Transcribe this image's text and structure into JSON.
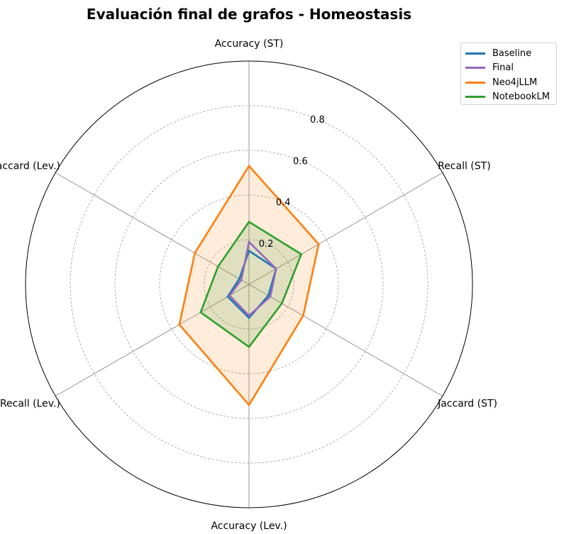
{
  "chart_data": {
    "type": "radar",
    "title": "Evaluación final de grafos - Homeostasis",
    "axes": [
      "Accuracy (ST)",
      "Recall (ST)",
      "Jaccard (ST)",
      "Accuracy (Lev.)",
      "Recall (Lev.)",
      "Jaccard (Lev.)"
    ],
    "rlim": [
      0,
      1.0
    ],
    "r_ticks": [
      0.2,
      0.4,
      0.6,
      0.8
    ],
    "r_tick_labels": [
      "0.2",
      "0.4",
      "0.6",
      "0.8"
    ],
    "grid": true,
    "legend_position": "top-right",
    "series": [
      {
        "name": "Baseline",
        "color": "#1f77b4",
        "values": [
          0.15,
          0.14,
          0.1,
          0.15,
          0.11,
          0.05
        ],
        "fill": false
      },
      {
        "name": "Final",
        "color": "#9467bd",
        "values": [
          0.19,
          0.14,
          0.11,
          0.14,
          0.1,
          0.04
        ],
        "fill": false
      },
      {
        "name": "Neo4jLLM",
        "color": "#ff7f0e",
        "values": [
          0.53,
          0.36,
          0.28,
          0.54,
          0.36,
          0.28
        ],
        "fill": true
      },
      {
        "name": "NotebookLM",
        "color": "#2ca02c",
        "values": [
          0.28,
          0.27,
          0.17,
          0.28,
          0.25,
          0.16
        ],
        "fill": true
      }
    ]
  }
}
